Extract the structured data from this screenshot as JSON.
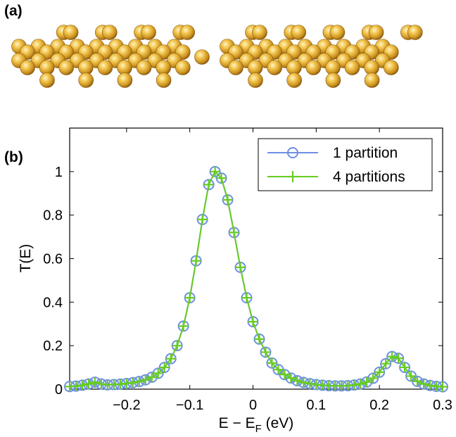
{
  "panel_a_label": "(a)",
  "panel_b_label": "(b)",
  "colors": {
    "gold_light": "#f7d97a",
    "gold": "#dca532",
    "gold_dark": "#8a5a10",
    "series1": "#6f8fe6",
    "series2": "#66cc22"
  },
  "chart_data": {
    "type": "line",
    "title": "",
    "xlabel": "E − E",
    "xlabel_sub": "F",
    "xlabel_unit": " (eV)",
    "ylabel": "T(E)",
    "xlim": [
      -0.29,
      0.3
    ],
    "ylim": [
      0,
      1.2
    ],
    "xticks": [
      -0.2,
      -0.1,
      0,
      0.1,
      0.2,
      0.3
    ],
    "xtick_labels": [
      "−0.2",
      "−0.1",
      "0",
      "0.1",
      "0.2",
      "0.3"
    ],
    "yticks": [
      0,
      0.2,
      0.4,
      0.6,
      0.8,
      1
    ],
    "ytick_labels": [
      "0",
      "0.2",
      "0.4",
      "0.6",
      "0.8",
      "1"
    ],
    "grid": false,
    "legend_position": "top-right",
    "series": [
      {
        "name": "1 partition",
        "marker": "circle",
        "x": [
          -0.29,
          -0.28,
          -0.27,
          -0.26,
          -0.25,
          -0.24,
          -0.23,
          -0.22,
          -0.21,
          -0.2,
          -0.19,
          -0.18,
          -0.17,
          -0.16,
          -0.15,
          -0.14,
          -0.13,
          -0.12,
          -0.11,
          -0.1,
          -0.09,
          -0.08,
          -0.07,
          -0.06,
          -0.05,
          -0.04,
          -0.03,
          -0.02,
          -0.01,
          0,
          0.01,
          0.02,
          0.03,
          0.04,
          0.05,
          0.06,
          0.07,
          0.08,
          0.09,
          0.1,
          0.11,
          0.12,
          0.13,
          0.14,
          0.15,
          0.16,
          0.17,
          0.18,
          0.19,
          0.2,
          0.21,
          0.22,
          0.23,
          0.24,
          0.25,
          0.26,
          0.27,
          0.28,
          0.29,
          0.3
        ],
        "y": [
          0.012,
          0.014,
          0.018,
          0.024,
          0.032,
          0.024,
          0.02,
          0.021,
          0.023,
          0.026,
          0.03,
          0.035,
          0.043,
          0.055,
          0.073,
          0.1,
          0.14,
          0.2,
          0.29,
          0.42,
          0.59,
          0.78,
          0.94,
          1.0,
          0.97,
          0.87,
          0.72,
          0.56,
          0.42,
          0.31,
          0.23,
          0.17,
          0.12,
          0.09,
          0.067,
          0.051,
          0.039,
          0.031,
          0.025,
          0.021,
          0.018,
          0.016,
          0.015,
          0.015,
          0.016,
          0.019,
          0.024,
          0.033,
          0.05,
          0.078,
          0.117,
          0.15,
          0.142,
          0.1,
          0.06,
          0.036,
          0.024,
          0.017,
          0.013,
          0.011
        ]
      },
      {
        "name": "4 partitions",
        "marker": "plus",
        "x": [
          -0.29,
          -0.28,
          -0.27,
          -0.26,
          -0.25,
          -0.24,
          -0.23,
          -0.22,
          -0.21,
          -0.2,
          -0.19,
          -0.18,
          -0.17,
          -0.16,
          -0.15,
          -0.14,
          -0.13,
          -0.12,
          -0.11,
          -0.1,
          -0.09,
          -0.08,
          -0.07,
          -0.06,
          -0.05,
          -0.04,
          -0.03,
          -0.02,
          -0.01,
          0,
          0.01,
          0.02,
          0.03,
          0.04,
          0.05,
          0.06,
          0.07,
          0.08,
          0.09,
          0.1,
          0.11,
          0.12,
          0.13,
          0.14,
          0.15,
          0.16,
          0.17,
          0.18,
          0.19,
          0.2,
          0.21,
          0.22,
          0.23,
          0.24,
          0.25,
          0.26,
          0.27,
          0.28,
          0.29,
          0.3
        ],
        "y": [
          0.012,
          0.014,
          0.018,
          0.024,
          0.032,
          0.024,
          0.02,
          0.021,
          0.023,
          0.026,
          0.03,
          0.035,
          0.043,
          0.055,
          0.073,
          0.1,
          0.14,
          0.2,
          0.29,
          0.42,
          0.59,
          0.78,
          0.94,
          1.0,
          0.97,
          0.87,
          0.72,
          0.56,
          0.42,
          0.31,
          0.23,
          0.17,
          0.12,
          0.09,
          0.067,
          0.051,
          0.039,
          0.031,
          0.025,
          0.021,
          0.018,
          0.016,
          0.015,
          0.015,
          0.016,
          0.019,
          0.024,
          0.033,
          0.05,
          0.078,
          0.117,
          0.15,
          0.142,
          0.1,
          0.06,
          0.036,
          0.024,
          0.017,
          0.013,
          0.011
        ]
      }
    ]
  }
}
